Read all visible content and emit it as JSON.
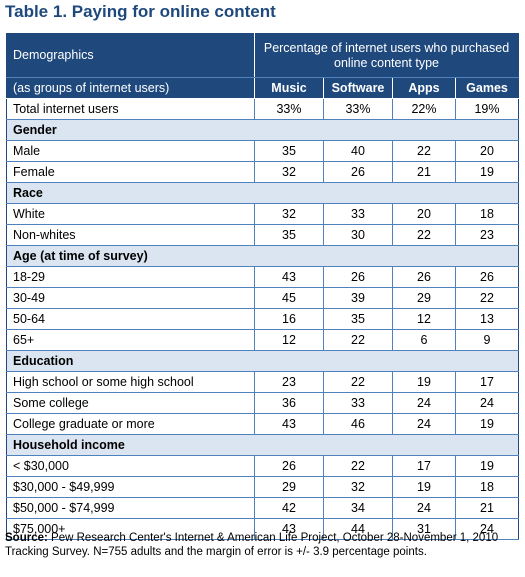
{
  "title": "Table 1. Paying for online content",
  "header": {
    "demographics": "Demographics",
    "percentage_header": "Percentage of internet users who purchased online content type",
    "subheader": "(as groups of internet users)",
    "columns": [
      "Music",
      "Software",
      "Apps",
      "Games"
    ]
  },
  "total_row": {
    "label": "Total internet users",
    "values": [
      "33%",
      "33%",
      "22%",
      "19%"
    ]
  },
  "sections": [
    {
      "title": "Gender",
      "rows": [
        {
          "label": "Male",
          "values": [
            "35",
            "40",
            "22",
            "20"
          ]
        },
        {
          "label": "Female",
          "values": [
            "32",
            "26",
            "21",
            "19"
          ]
        }
      ]
    },
    {
      "title": "Race",
      "rows": [
        {
          "label": "White",
          "values": [
            "32",
            "33",
            "20",
            "18"
          ]
        },
        {
          "label": "Non-whites",
          "values": [
            "35",
            "30",
            "22",
            "23"
          ]
        }
      ]
    },
    {
      "title": "Age (at time of survey)",
      "rows": [
        {
          "label": "18-29",
          "values": [
            "43",
            "26",
            "26",
            "26"
          ]
        },
        {
          "label": "30-49",
          "values": [
            "45",
            "39",
            "29",
            "22"
          ]
        },
        {
          "label": "50-64",
          "values": [
            "16",
            "35",
            "12",
            "13"
          ]
        },
        {
          "label": "65+",
          "values": [
            "12",
            "22",
            "6",
            "9"
          ]
        }
      ]
    },
    {
      "title": "Education",
      "rows": [
        {
          "label": "High school or some high school",
          "values": [
            "23",
            "22",
            "19",
            "17"
          ]
        },
        {
          "label": "Some college",
          "values": [
            "36",
            "33",
            "24",
            "24"
          ]
        },
        {
          "label": "College graduate or more",
          "values": [
            "43",
            "46",
            "24",
            "19"
          ]
        }
      ]
    },
    {
      "title": "Household income",
      "rows": [
        {
          "label": "< $30,000",
          "values": [
            "26",
            "22",
            "17",
            "19"
          ]
        },
        {
          "label": "$30,000 - $49,999",
          "values": [
            "29",
            "32",
            "19",
            "18"
          ]
        },
        {
          "label": "$50,000 - $74,999",
          "values": [
            "42",
            "34",
            "24",
            "21"
          ]
        },
        {
          "label": "$75,000+",
          "values": [
            "43",
            "44",
            "31",
            "24"
          ]
        }
      ]
    }
  ],
  "source": {
    "label": "Source:",
    "text": "Pew Research Center's Internet & American Life Project, October 28-November 1, 2010 Tracking Survey. N=755 adults and the margin of error is +/- 3.9 percentage points."
  }
}
